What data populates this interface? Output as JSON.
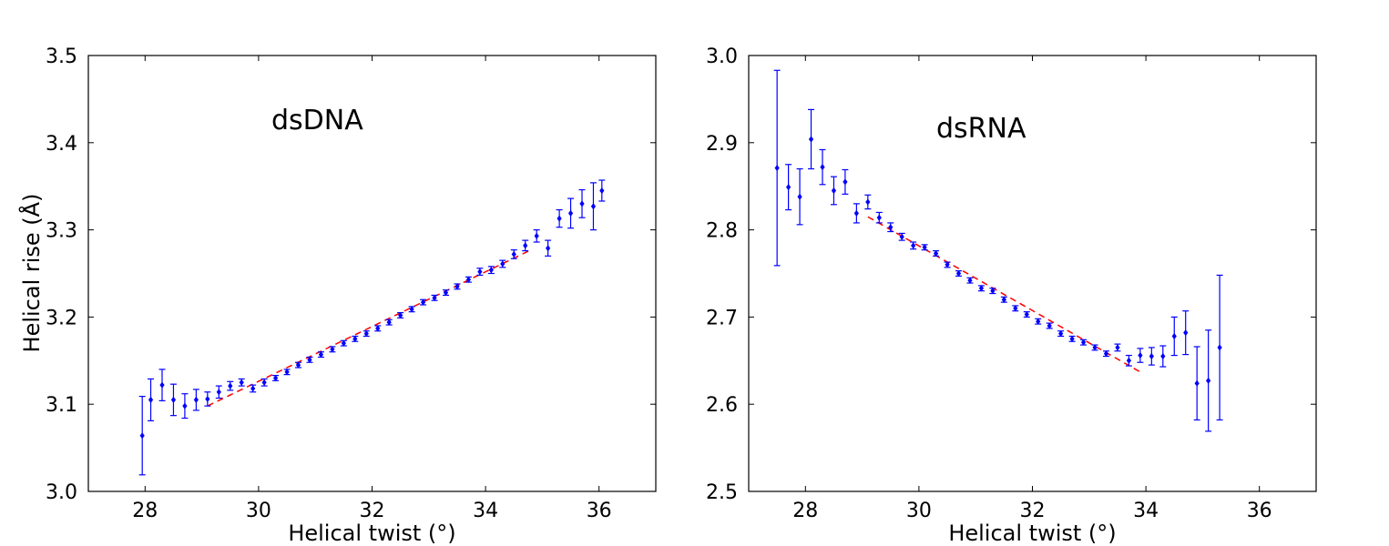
{
  "chart_data": [
    {
      "type": "scatter",
      "annotation": "dsDNA",
      "xlabel": "Helical twist (°)",
      "ylabel": "Helical rise (Å)",
      "xlim": [
        27,
        37
      ],
      "ylim": [
        3.0,
        3.5
      ],
      "xticks": [
        28,
        30,
        32,
        34,
        36
      ],
      "yticks": [
        3.0,
        3.1,
        3.2,
        3.3,
        3.4,
        3.5
      ],
      "ytick_labels": [
        "3.0",
        "3.1",
        "3.2",
        "3.3",
        "3.4",
        "3.5"
      ],
      "grid": false,
      "marker_color": "#0000ff",
      "fit_color": "#ff0000",
      "points": {
        "x": [
          27.95,
          28.1,
          28.3,
          28.5,
          28.7,
          28.9,
          29.1,
          29.3,
          29.5,
          29.7,
          29.9,
          30.1,
          30.3,
          30.5,
          30.7,
          30.9,
          31.1,
          31.3,
          31.5,
          31.7,
          31.9,
          32.1,
          32.3,
          32.5,
          32.7,
          32.9,
          33.1,
          33.3,
          33.5,
          33.7,
          33.9,
          34.1,
          34.3,
          34.5,
          34.7,
          34.9,
          35.1,
          35.3,
          35.5,
          35.7,
          35.9,
          36.05
        ],
        "y": [
          3.064,
          3.105,
          3.122,
          3.105,
          3.098,
          3.105,
          3.106,
          3.114,
          3.121,
          3.125,
          3.118,
          3.125,
          3.13,
          3.137,
          3.145,
          3.151,
          3.157,
          3.163,
          3.17,
          3.175,
          3.181,
          3.187,
          3.194,
          3.202,
          3.209,
          3.217,
          3.222,
          3.228,
          3.235,
          3.243,
          3.252,
          3.254,
          3.261,
          3.272,
          3.282,
          3.293,
          3.279,
          3.313,
          3.319,
          3.33,
          3.327,
          3.345
        ],
        "err": [
          0.045,
          0.024,
          0.018,
          0.018,
          0.014,
          0.012,
          0.008,
          0.007,
          0.005,
          0.004,
          0.004,
          0.004,
          0.003,
          0.003,
          0.003,
          0.003,
          0.003,
          0.003,
          0.003,
          0.003,
          0.003,
          0.003,
          0.003,
          0.003,
          0.003,
          0.003,
          0.003,
          0.003,
          0.003,
          0.003,
          0.004,
          0.004,
          0.004,
          0.005,
          0.006,
          0.007,
          0.009,
          0.01,
          0.017,
          0.016,
          0.027,
          0.012
        ]
      },
      "fit": {
        "x": [
          29.1,
          34.8
        ],
        "y": [
          3.098,
          3.277
        ]
      }
    },
    {
      "type": "scatter",
      "annotation": "dsRNA",
      "xlabel": "Helical twist (°)",
      "ylabel": "",
      "xlim": [
        27,
        37
      ],
      "ylim": [
        2.5,
        3.0
      ],
      "xticks": [
        28,
        30,
        32,
        34,
        36
      ],
      "yticks": [
        2.5,
        2.6,
        2.7,
        2.8,
        2.9,
        3.0
      ],
      "ytick_labels": [
        "2.5",
        "2.6",
        "2.7",
        "2.8",
        "2.9",
        "3.0"
      ],
      "grid": false,
      "marker_color": "#0000ff",
      "fit_color": "#ff0000",
      "points": {
        "x": [
          27.5,
          27.7,
          27.9,
          28.1,
          28.3,
          28.5,
          28.7,
          28.9,
          29.1,
          29.3,
          29.5,
          29.7,
          29.9,
          30.1,
          30.3,
          30.5,
          30.7,
          30.9,
          31.1,
          31.3,
          31.5,
          31.7,
          31.9,
          32.1,
          32.3,
          32.5,
          32.7,
          32.9,
          33.1,
          33.3,
          33.5,
          33.7,
          33.9,
          34.1,
          34.3,
          34.5,
          34.7,
          34.9,
          35.1,
          35.3
        ],
        "y": [
          2.871,
          2.849,
          2.838,
          2.904,
          2.872,
          2.845,
          2.855,
          2.819,
          2.832,
          2.814,
          2.803,
          2.792,
          2.782,
          2.78,
          2.773,
          2.76,
          2.75,
          2.742,
          2.733,
          2.73,
          2.72,
          2.71,
          2.703,
          2.695,
          2.69,
          2.681,
          2.675,
          2.671,
          2.665,
          2.658,
          2.665,
          2.65,
          2.656,
          2.655,
          2.655,
          2.678,
          2.682,
          2.624,
          2.627,
          2.665
        ],
        "err": [
          0.112,
          0.026,
          0.032,
          0.034,
          0.02,
          0.016,
          0.014,
          0.011,
          0.008,
          0.006,
          0.005,
          0.004,
          0.004,
          0.003,
          0.003,
          0.003,
          0.003,
          0.003,
          0.003,
          0.003,
          0.003,
          0.003,
          0.003,
          0.003,
          0.003,
          0.003,
          0.003,
          0.003,
          0.003,
          0.003,
          0.004,
          0.006,
          0.008,
          0.01,
          0.012,
          0.022,
          0.025,
          0.042,
          0.058,
          0.083
        ]
      },
      "fit": {
        "x": [
          29.1,
          33.9
        ],
        "y": [
          2.815,
          2.637
        ]
      }
    }
  ]
}
